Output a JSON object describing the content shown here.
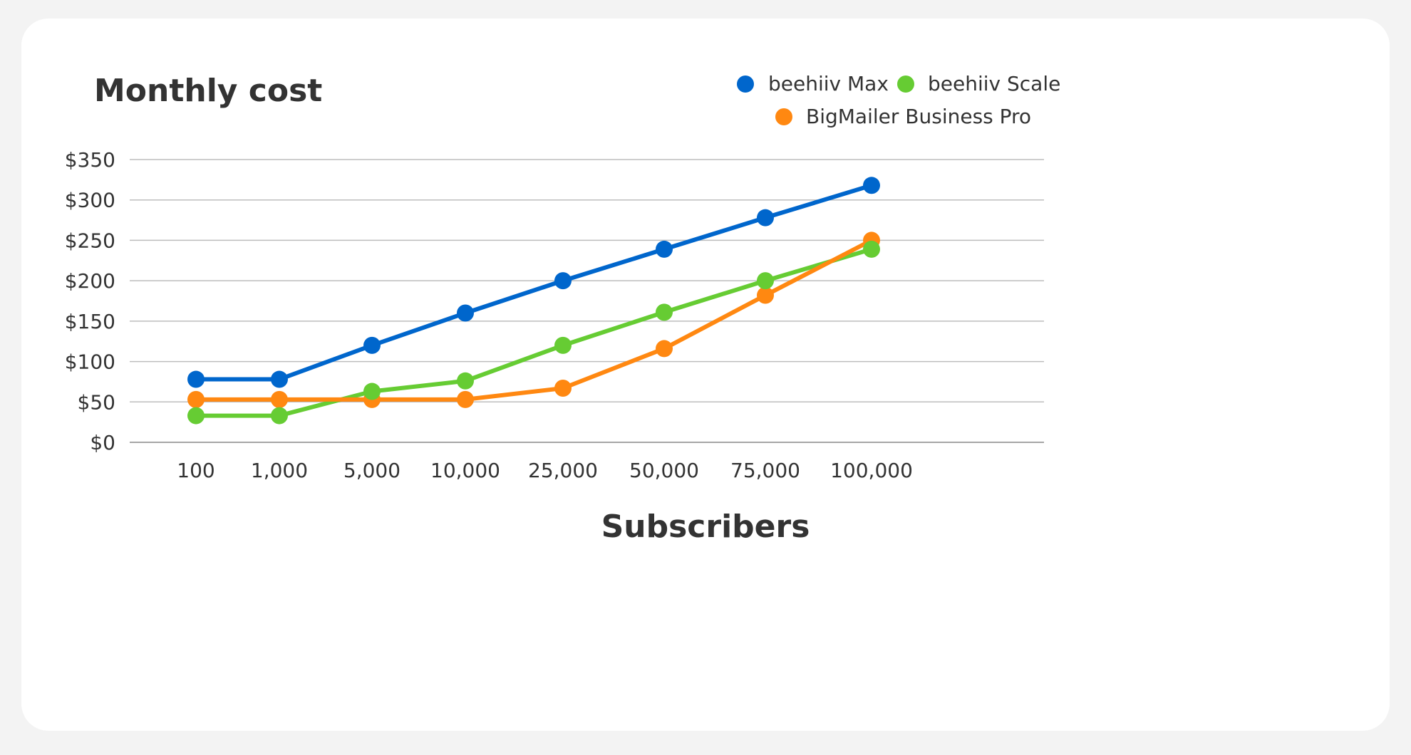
{
  "chart_data": {
    "type": "line",
    "title": "Monthly cost",
    "xlabel": "Subscribers",
    "ylabel": "",
    "categories": [
      "100",
      "1,000",
      "5,000",
      "10,000",
      "25,000",
      "50,000",
      "75,000",
      "100,000"
    ],
    "ylim": [
      0,
      350
    ],
    "yticks": [
      0,
      50,
      100,
      150,
      200,
      250,
      300,
      350
    ],
    "ytick_labels": [
      "$0",
      "$50",
      "$100",
      "$150",
      "$200",
      "$250",
      "$300",
      "$350"
    ],
    "grid": "horizontal",
    "legend_position": "top-right",
    "series": [
      {
        "name": "beehiiv Max",
        "color": "#0066cc",
        "values": [
          78,
          78,
          120,
          160,
          200,
          239,
          278,
          318
        ]
      },
      {
        "name": "beehiiv Scale",
        "color": "#66cc33",
        "values": [
          33,
          33,
          63,
          76,
          120,
          161,
          200,
          239
        ]
      },
      {
        "name": "BigMailer Business Pro",
        "color": "#ff8811",
        "values": [
          53,
          53,
          53,
          53,
          67,
          116,
          182,
          250
        ]
      }
    ]
  }
}
